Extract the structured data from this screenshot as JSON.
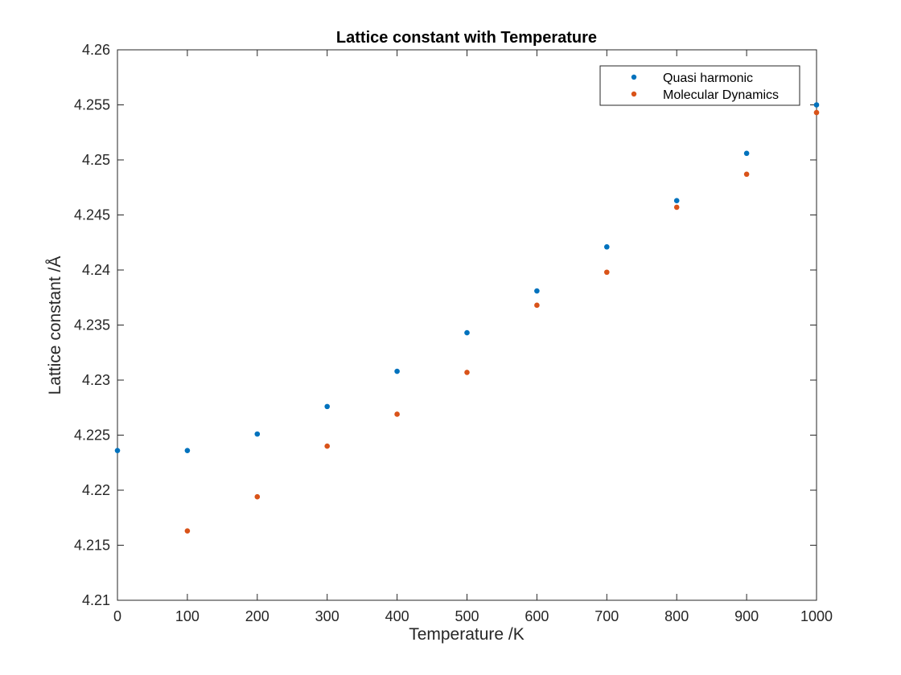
{
  "chart_data": {
    "type": "scatter",
    "title": "Lattice constant with Temperature",
    "xlabel": "Temperature /K",
    "ylabel": "Lattice constant /Å",
    "xlim": [
      0,
      1000
    ],
    "ylim": [
      4.21,
      4.26
    ],
    "xticks": [
      0,
      100,
      200,
      300,
      400,
      500,
      600,
      700,
      800,
      900,
      1000
    ],
    "xtick_labels": [
      "0",
      "100",
      "200",
      "300",
      "400",
      "500",
      "600",
      "700",
      "800",
      "900",
      "1000"
    ],
    "yticks": [
      4.21,
      4.215,
      4.22,
      4.225,
      4.23,
      4.235,
      4.24,
      4.245,
      4.25,
      4.255,
      4.26
    ],
    "ytick_labels": [
      "4.21",
      "4.215",
      "4.22",
      "4.225",
      "4.23",
      "4.235",
      "4.24",
      "4.245",
      "4.25",
      "4.255",
      "4.26"
    ],
    "grid": false,
    "legend_position": "top-right",
    "series": [
      {
        "name": "Quasi harmonic",
        "color": "#0072bd",
        "x": [
          0,
          100,
          200,
          300,
          400,
          500,
          600,
          700,
          800,
          900,
          1000
        ],
        "y": [
          4.2236,
          4.2236,
          4.2251,
          4.2276,
          4.2308,
          4.2343,
          4.2381,
          4.2421,
          4.2463,
          4.2506,
          4.255
        ]
      },
      {
        "name": "Molecular Dynamics",
        "color": "#d95319",
        "x": [
          100,
          200,
          300,
          400,
          500,
          600,
          700,
          800,
          900,
          1000
        ],
        "y": [
          4.2163,
          4.2194,
          4.224,
          4.2269,
          4.2307,
          4.2368,
          4.2398,
          4.2457,
          4.2487,
          4.2543
        ]
      }
    ]
  }
}
